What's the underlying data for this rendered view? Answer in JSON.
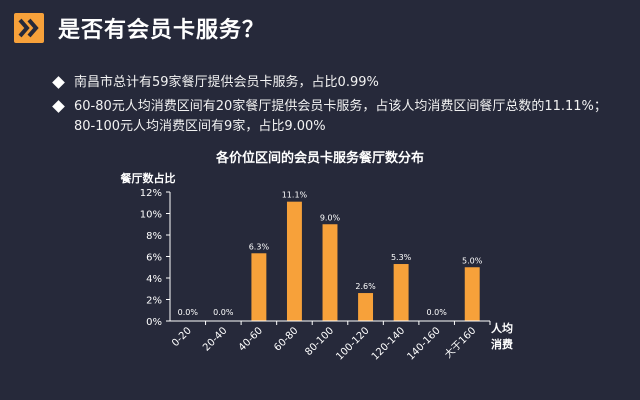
{
  "header": {
    "title": "是否有会员卡服务？",
    "accent_color": "#f7a13a",
    "icon": "double-chevron-right-icon"
  },
  "bullets": [
    "南昌市总计有59家餐厅提供会员卡服务，占比0.99%",
    "60-80元人均消费区间有20家餐厅提供会员卡服务，占该人均消费区间餐厅总数的11.11%；80-100元人均消费区间有9家，占比9.00%"
  ],
  "chart_data": {
    "type": "bar",
    "title": "各价位区间的会员卡服务餐厅数分布",
    "ylabel": "餐厅数占比",
    "xlabel": "人均消费",
    "categories": [
      "0-20",
      "20-40",
      "40-60",
      "60-80",
      "80-100",
      "100-120",
      "120-140",
      "140-160",
      "大于160"
    ],
    "values": [
      0.0,
      0.0,
      6.3,
      11.1,
      9.0,
      2.6,
      5.3,
      0.0,
      5.0
    ],
    "data_labels": [
      "0.0%",
      "0.0%",
      "6.3%",
      "11.1%",
      "9.0%",
      "2.6%",
      "5.3%",
      "0.0%",
      "5.0%"
    ],
    "ylim": [
      0,
      12
    ],
    "yticks": [
      "0%",
      "2%",
      "4%",
      "6%",
      "8%",
      "10%",
      "12%"
    ],
    "bar_color": "#f7a13a",
    "grid": false,
    "legend": "none"
  }
}
